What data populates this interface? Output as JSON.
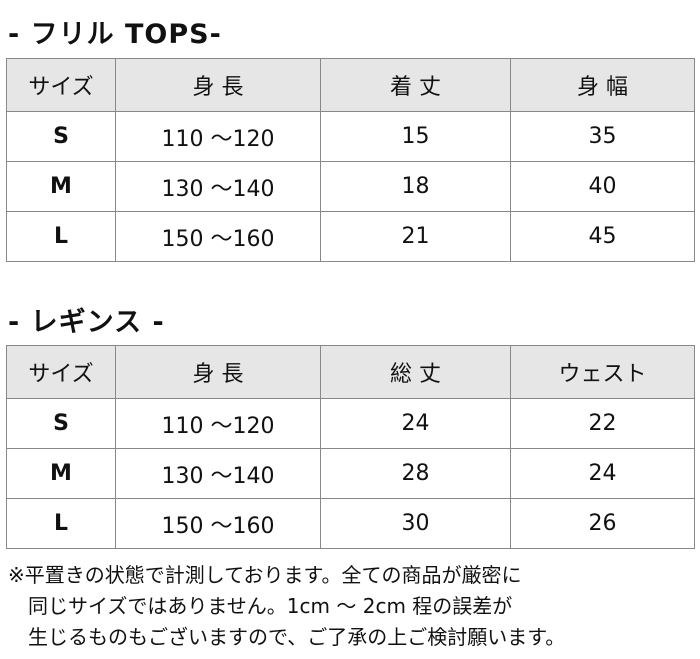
{
  "tables": [
    {
      "title": "- フリル TOPS-",
      "headers": [
        "サイズ",
        "身 長",
        "着 丈",
        "身 幅"
      ],
      "rows": [
        [
          "S",
          "110 ～120",
          "15",
          "35"
        ],
        [
          "M",
          "130 ～140",
          "18",
          "40"
        ],
        [
          "L",
          "150 ～160",
          "21",
          "45"
        ]
      ]
    },
    {
      "title": "- レギンス -",
      "headers": [
        "サイズ",
        "身 長",
        "総 丈",
        "ウェスト"
      ],
      "rows": [
        [
          "S",
          "110 ～120",
          "24",
          "22"
        ],
        [
          "M",
          "130 ～140",
          "28",
          "24"
        ],
        [
          "L",
          "150 ～160",
          "30",
          "26"
        ]
      ]
    }
  ],
  "note": [
    "※平置きの状態で計測しております。全ての商品が厳密に",
    "　同じサイズではありません。1cm ～ 2cm 程の誤差が",
    "　生じるものもございますので、ご了承の上ご検討願います。"
  ]
}
